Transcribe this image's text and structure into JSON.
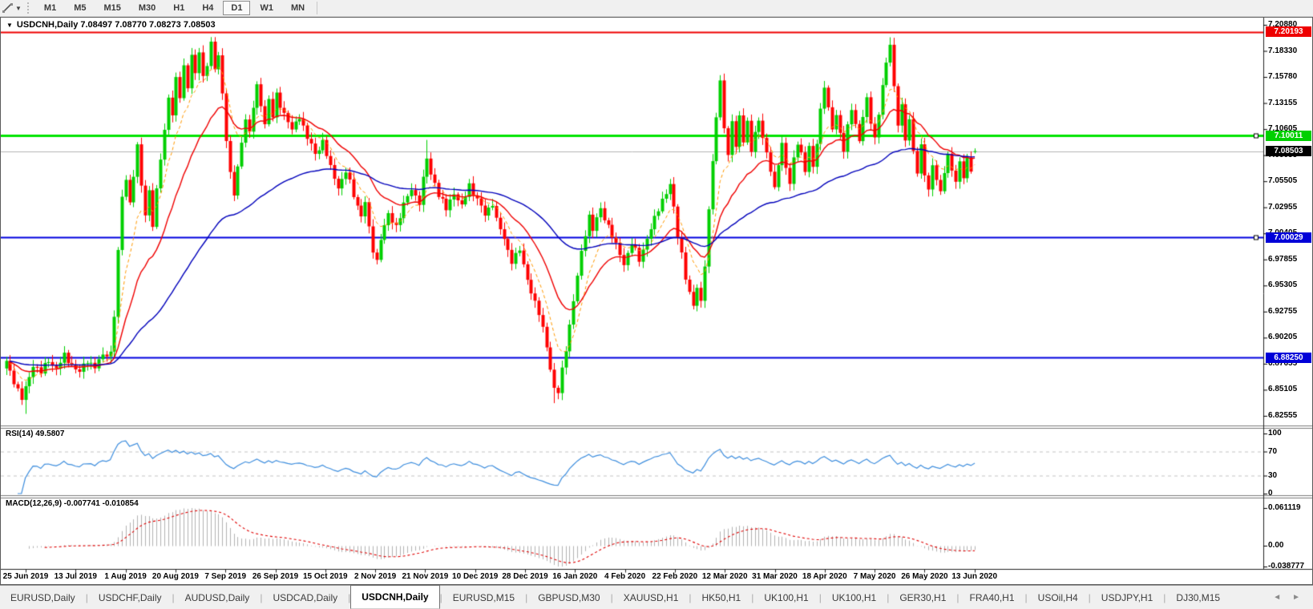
{
  "toolbar": {
    "timeframes": [
      "M1",
      "M5",
      "M15",
      "M30",
      "H1",
      "H4",
      "D1",
      "W1",
      "MN"
    ],
    "active_timeframe": "D1",
    "tool_icon": "drawing-tool-icon"
  },
  "chart": {
    "title": "USDCNH,Daily  7.08497 7.08770 7.08273 7.08503",
    "symbol": "USDCNH",
    "period": "Daily",
    "background": "#ffffff",
    "bull_color": "#00cf00",
    "bear_color": "#ff0000",
    "price_ticks": [
      "7.20880",
      "7.18330",
      "7.15780",
      "7.13155",
      "7.10605",
      "7.08055",
      "7.05505",
      "7.02955",
      "7.00405",
      "6.97855",
      "6.95305",
      "6.92755",
      "6.90205",
      "6.87655",
      "6.85105",
      "6.82555"
    ],
    "levels": [
      {
        "price": 7.20193,
        "label": "7.20193",
        "line_color": "#ee0000",
        "badge_color": "#ee0000",
        "thickness": 2,
        "handle": false
      },
      {
        "price": 7.10011,
        "label": "7.10011",
        "line_color": "#00e400",
        "badge_color": "#00d000",
        "thickness": 3,
        "handle": true
      },
      {
        "price": 7.08503,
        "label": "7.08503",
        "line_color": "#b4b4b4",
        "badge_color": "#000000",
        "thickness": 1,
        "handle": false
      },
      {
        "price": 7.00029,
        "label": "7.00029",
        "line_color": "#0000e0",
        "badge_color": "#0000d8",
        "thickness": 2,
        "handle": true
      },
      {
        "price": 6.8825,
        "label": "6.88250",
        "line_color": "#0000e0",
        "badge_color": "#0000d8",
        "thickness": 2,
        "handle": false
      }
    ]
  },
  "rsi": {
    "label": "RSI(14) 49.5807",
    "period": 14,
    "current": 49.5807,
    "ticks": [
      {
        "v": 100,
        "label": "100"
      },
      {
        "v": 70,
        "label": "70"
      },
      {
        "v": 30,
        "label": "30"
      },
      {
        "v": 0,
        "label": "0"
      }
    ],
    "dashed_levels": [
      70,
      30
    ],
    "line_color": "#3e8ede"
  },
  "macd": {
    "label": "MACD(12,26,9) -0.007741 -0.010854",
    "fast": 12,
    "slow": 26,
    "signal": 9,
    "current_macd": -0.007741,
    "current_signal": -0.010854,
    "ticks": [
      {
        "v": 0.061119,
        "label": "0.061119"
      },
      {
        "v": 0,
        "label": "0.00"
      },
      {
        "v": -0.038777,
        "label": "-0.038777"
      }
    ],
    "bar_color": "#b2b2b2",
    "signal_color": "#e00000"
  },
  "date_axis": [
    "25 Jun 2019",
    "13 Jul 2019",
    "1 Aug 2019",
    "20 Aug 2019",
    "7 Sep 2019",
    "26 Sep 2019",
    "15 Oct 2019",
    "2 Nov 2019",
    "21 Nov 2019",
    "10 Dec 2019",
    "28 Dec 2019",
    "16 Jan 2020",
    "4 Feb 2020",
    "22 Feb 2020",
    "12 Mar 2020",
    "31 Mar 2020",
    "18 Apr 2020",
    "7 May 2020",
    "26 May 2020",
    "13 Jun 2020"
  ],
  "tabs": {
    "items": [
      "EURUSD,Daily",
      "USDCHF,Daily",
      "AUDUSD,Daily",
      "USDCAD,Daily",
      "USDCNH,Daily",
      "EURUSD,M15",
      "GBPUSD,M30",
      "XAUUSD,H1",
      "HK50,H1",
      "UK100,H1",
      "UK100,H1",
      "GER30,H1",
      "FRA40,H1",
      "USOil,H4",
      "USDJPY,H1",
      "DJ30,M15"
    ],
    "active": "USDCNH,Daily"
  },
  "chart_data": {
    "type": "candlestick",
    "symbol": "USDCNH",
    "timeframe": "Daily",
    "count": 252,
    "price_axis_range": [
      6.8256,
      7.2088
    ],
    "ohlc_current": {
      "open": 7.08497,
      "high": 7.0877,
      "low": 7.08273,
      "close": 7.08503
    },
    "close_anchors": [
      [
        0,
        6.878
      ],
      [
        2,
        6.86
      ],
      [
        4,
        6.842
      ],
      [
        5,
        6.852
      ],
      [
        7,
        6.876
      ],
      [
        9,
        6.868
      ],
      [
        11,
        6.88
      ],
      [
        13,
        6.872
      ],
      [
        15,
        6.884
      ],
      [
        17,
        6.876
      ],
      [
        19,
        6.868
      ],
      [
        21,
        6.88
      ],
      [
        23,
        6.874
      ],
      [
        25,
        6.884
      ],
      [
        27,
        6.888
      ],
      [
        28,
        6.925
      ],
      [
        29,
        6.985
      ],
      [
        30,
        7.04
      ],
      [
        31,
        7.058
      ],
      [
        32,
        7.035
      ],
      [
        33,
        7.062
      ],
      [
        34,
        7.088
      ],
      [
        35,
        7.052
      ],
      [
        36,
        7.022
      ],
      [
        37,
        7.048
      ],
      [
        38,
        7.012
      ],
      [
        39,
        7.045
      ],
      [
        40,
        7.078
      ],
      [
        41,
        7.105
      ],
      [
        42,
        7.14
      ],
      [
        43,
        7.12
      ],
      [
        44,
        7.155
      ],
      [
        45,
        7.138
      ],
      [
        46,
        7.168
      ],
      [
        47,
        7.15
      ],
      [
        48,
        7.178
      ],
      [
        49,
        7.16
      ],
      [
        50,
        7.182
      ],
      [
        51,
        7.158
      ],
      [
        52,
        7.172
      ],
      [
        53,
        7.19
      ],
      [
        54,
        7.165
      ],
      [
        55,
        7.178
      ],
      [
        56,
        7.142
      ],
      [
        57,
        7.098
      ],
      [
        58,
        7.062
      ],
      [
        59,
        7.042
      ],
      [
        60,
        7.068
      ],
      [
        61,
        7.095
      ],
      [
        62,
        7.118
      ],
      [
        63,
        7.102
      ],
      [
        64,
        7.128
      ],
      [
        65,
        7.148
      ],
      [
        66,
        7.132
      ],
      [
        67,
        7.112
      ],
      [
        68,
        7.135
      ],
      [
        69,
        7.118
      ],
      [
        70,
        7.14
      ],
      [
        72,
        7.122
      ],
      [
        74,
        7.105
      ],
      [
        76,
        7.12
      ],
      [
        78,
        7.098
      ],
      [
        80,
        7.082
      ],
      [
        82,
        7.095
      ],
      [
        84,
        7.068
      ],
      [
        86,
        7.05
      ],
      [
        88,
        7.065
      ],
      [
        90,
        7.042
      ],
      [
        92,
        7.022
      ],
      [
        93,
        7.035
      ],
      [
        94,
        7.008
      ],
      [
        95,
        6.988
      ],
      [
        96,
        6.978
      ],
      [
        97,
        7.0
      ],
      [
        99,
        7.022
      ],
      [
        101,
        7.012
      ],
      [
        103,
        7.032
      ],
      [
        105,
        7.048
      ],
      [
        107,
        7.035
      ],
      [
        109,
        7.078
      ],
      [
        110,
        7.062
      ],
      [
        111,
        7.055
      ],
      [
        112,
        7.042
      ],
      [
        114,
        7.028
      ],
      [
        116,
        7.045
      ],
      [
        118,
        7.03
      ],
      [
        120,
        7.052
      ],
      [
        122,
        7.038
      ],
      [
        124,
        7.022
      ],
      [
        126,
        7.035
      ],
      [
        127,
        7.018
      ],
      [
        129,
        6.998
      ],
      [
        131,
        6.978
      ],
      [
        133,
        6.988
      ],
      [
        134,
        6.972
      ],
      [
        136,
        6.948
      ],
      [
        138,
        6.925
      ],
      [
        140,
        6.895
      ],
      [
        141,
        6.872
      ],
      [
        142,
        6.852
      ],
      [
        143,
        6.848
      ],
      [
        144,
        6.87
      ],
      [
        145,
        6.892
      ],
      [
        146,
        6.915
      ],
      [
        147,
        6.938
      ],
      [
        148,
        6.962
      ],
      [
        149,
        6.985
      ],
      [
        150,
        7.005
      ],
      [
        151,
        7.022
      ],
      [
        152,
        7.008
      ],
      [
        154,
        7.028
      ],
      [
        156,
        7.012
      ],
      [
        158,
        6.992
      ],
      [
        160,
        6.975
      ],
      [
        162,
        6.995
      ],
      [
        164,
        6.978
      ],
      [
        166,
        7.0
      ],
      [
        168,
        7.018
      ],
      [
        170,
        7.038
      ],
      [
        172,
        7.052
      ],
      [
        173,
        7.028
      ],
      [
        174,
        7.002
      ],
      [
        175,
        6.985
      ],
      [
        176,
        6.962
      ],
      [
        177,
        6.945
      ],
      [
        178,
        6.932
      ],
      [
        179,
        6.952
      ],
      [
        180,
        6.938
      ],
      [
        181,
        6.975
      ],
      [
        182,
        7.025
      ],
      [
        183,
        7.075
      ],
      [
        184,
        7.118
      ],
      [
        185,
        7.155
      ],
      [
        186,
        7.11
      ],
      [
        187,
        7.078
      ],
      [
        188,
        7.115
      ],
      [
        189,
        7.088
      ],
      [
        190,
        7.122
      ],
      [
        191,
        7.095
      ],
      [
        192,
        7.112
      ],
      [
        193,
        7.085
      ],
      [
        194,
        7.102
      ],
      [
        195,
        7.118
      ],
      [
        196,
        7.098
      ],
      [
        197,
        7.082
      ],
      [
        198,
        7.065
      ],
      [
        199,
        7.048
      ],
      [
        200,
        7.075
      ],
      [
        201,
        7.092
      ],
      [
        202,
        7.068
      ],
      [
        203,
        7.052
      ],
      [
        204,
        7.078
      ],
      [
        205,
        7.095
      ],
      [
        206,
        7.082
      ],
      [
        207,
        7.065
      ],
      [
        208,
        7.088
      ],
      [
        209,
        7.07
      ],
      [
        210,
        7.095
      ],
      [
        211,
        7.125
      ],
      [
        212,
        7.148
      ],
      [
        213,
        7.125
      ],
      [
        214,
        7.108
      ],
      [
        215,
        7.122
      ],
      [
        216,
        7.102
      ],
      [
        217,
        7.085
      ],
      [
        218,
        7.108
      ],
      [
        219,
        7.128
      ],
      [
        220,
        7.112
      ],
      [
        221,
        7.095
      ],
      [
        222,
        7.118
      ],
      [
        223,
        7.135
      ],
      [
        224,
        7.115
      ],
      [
        225,
        7.098
      ],
      [
        226,
        7.122
      ],
      [
        227,
        7.148
      ],
      [
        228,
        7.17
      ],
      [
        229,
        7.192
      ],
      [
        230,
        7.148
      ],
      [
        231,
        7.112
      ],
      [
        232,
        7.128
      ],
      [
        233,
        7.095
      ],
      [
        234,
        7.118
      ],
      [
        235,
        7.085
      ],
      [
        236,
        7.065
      ],
      [
        237,
        7.088
      ],
      [
        238,
        7.062
      ],
      [
        239,
        7.048
      ],
      [
        240,
        7.072
      ],
      [
        241,
        7.058
      ],
      [
        242,
        7.042
      ],
      [
        243,
        7.065
      ],
      [
        244,
        7.082
      ],
      [
        245,
        7.068
      ],
      [
        246,
        7.055
      ],
      [
        247,
        7.072
      ],
      [
        248,
        7.06
      ],
      [
        249,
        7.078
      ],
      [
        250,
        7.068
      ],
      [
        251,
        7.08503
      ]
    ],
    "extra_wicks": [
      [
        5,
        "low",
        6.8275
      ],
      [
        53,
        "high",
        7.1965
      ],
      [
        109,
        "high",
        7.096
      ],
      [
        142,
        "low",
        6.838
      ],
      [
        229,
        "high",
        7.1966
      ]
    ],
    "moving_averages": [
      {
        "period": 8,
        "color": "#ff9900",
        "style": "dash"
      },
      {
        "period": 20,
        "color": "#f00000",
        "style": "solid"
      },
      {
        "period": 65,
        "color": "#0000bb",
        "style": "solid"
      }
    ]
  }
}
